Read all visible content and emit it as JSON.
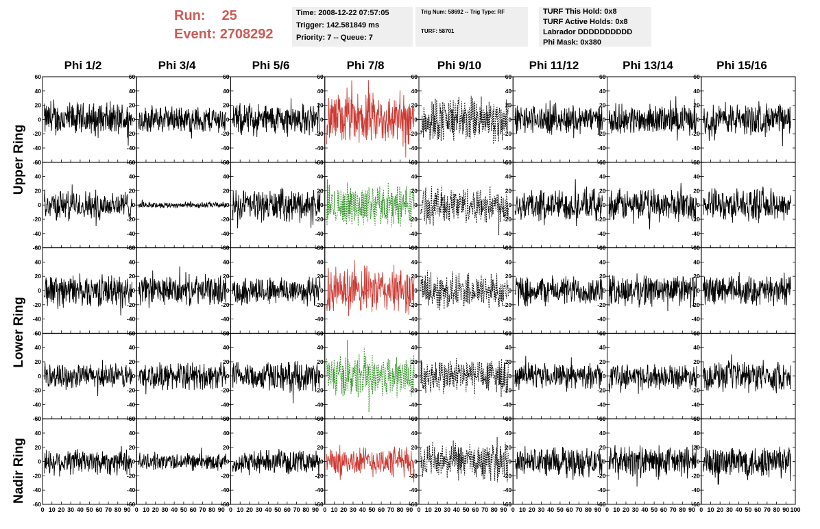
{
  "header": {
    "run_label": "Run:",
    "run_value": "25",
    "event_label": "Event:",
    "event_value": "2708292",
    "box1": [
      "Time: 2008-12-22 07:57:05",
      "Trigger: 142.581849 ms",
      "Priority: 7 -- Queue: 7"
    ],
    "box2": [
      "Trig Num: 58692 -- Trig Type: RF",
      "TURF: 58701"
    ],
    "box3": [
      "TURF This Hold: 0x8",
      "TURF Active Holds: 0x8",
      "Labrador DDDDDDDDDD",
      "Phi Mask: 0x380"
    ]
  },
  "columns": [
    "Phi 1/2",
    "Phi 3/4",
    "Phi 5/6",
    "Phi 7/8",
    "Phi 9/10",
    "Phi 11/12",
    "Phi 13/14",
    "Phi 15/16"
  ],
  "ring_labels": [
    "Upper Ring",
    "Lower Ring",
    "Nadir Ring"
  ],
  "colors": {
    "normal": "#000000",
    "triggered_vpol": "#cc3a33",
    "triggered_hpol": "#2a8f1e",
    "background": "#ffffff"
  },
  "chart_data": {
    "type": "line",
    "title": "",
    "xlabel": "",
    "ylabel": "",
    "xlim": [
      0,
      100
    ],
    "ylim": [
      -60,
      60
    ],
    "x_ticks": [
      0,
      10,
      20,
      30,
      40,
      50,
      60,
      70,
      80,
      90,
      100
    ],
    "y_ticks": [
      -60,
      -40,
      -20,
      0,
      20,
      40,
      60
    ],
    "x_tick_labels": [
      "0",
      "10",
      "20",
      "30",
      "40",
      "50",
      "60",
      "70",
      "80",
      "90",
      "100"
    ],
    "y_tick_labels": [
      "-60",
      "-40",
      "-20",
      "0",
      "20",
      "40",
      "60"
    ],
    "rows": 5,
    "cols": 8,
    "panel_styles": [
      [
        "solid-black",
        "solid-black",
        "solid-black",
        "solid-red",
        "dotted-black",
        "solid-black",
        "solid-black",
        "solid-black"
      ],
      [
        "solid-black",
        "solid-black",
        "solid-black",
        "dotted-green",
        "dotted-black",
        "solid-black",
        "solid-black",
        "solid-black"
      ],
      [
        "solid-black",
        "solid-black",
        "solid-black",
        "solid-red",
        "dotted-black",
        "solid-black",
        "solid-black",
        "solid-black"
      ],
      [
        "solid-black",
        "solid-black",
        "solid-black",
        "dotted-green",
        "dotted-black",
        "solid-black",
        "solid-black",
        "solid-black"
      ],
      [
        "solid-black",
        "solid-black",
        "solid-black",
        "solid-red",
        "dotted-black",
        "solid-black",
        "solid-black",
        "solid-black"
      ]
    ],
    "panel_amplitudes": [
      [
        28,
        22,
        26,
        42,
        38,
        24,
        24,
        26
      ],
      [
        24,
        5,
        26,
        34,
        30,
        26,
        26,
        26
      ],
      [
        26,
        24,
        24,
        38,
        30,
        24,
        26,
        24
      ],
      [
        20,
        22,
        24,
        36,
        30,
        20,
        20,
        24
      ],
      [
        22,
        14,
        18,
        24,
        30,
        24,
        26,
        28
      ]
    ],
    "series_note_samples": 260
  }
}
